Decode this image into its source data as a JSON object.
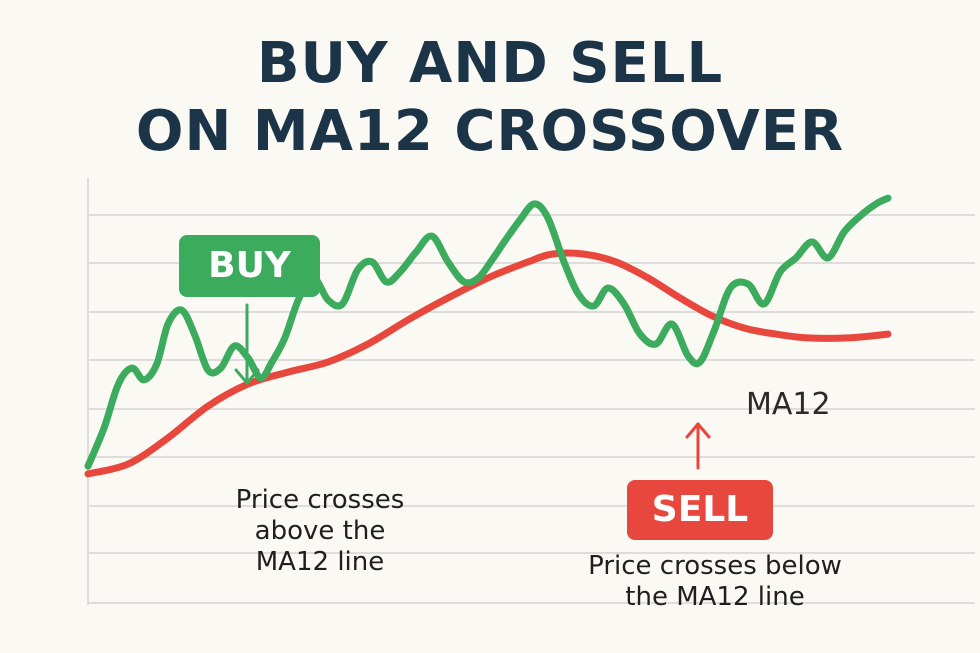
{
  "title": {
    "line1": "BUY AND SELL",
    "line2": "ON MA12 CROSSOVER"
  },
  "annotations": {
    "buy_label": "BUY",
    "buy_note": "Price crosses\nabove the\nMA12 line",
    "sell_label": "SELL",
    "sell_note": "Price crosses below\nthe MA12 line",
    "ma_label": "MA12"
  },
  "colors": {
    "price": "#3dab5e",
    "ma12": "#e8473d",
    "buy": "#3dab5e",
    "sell": "#e8473d",
    "title": "#1c3447",
    "grid": "#dddddd"
  },
  "chart_data": {
    "type": "line",
    "title": "BUY AND SELL ON MA12 CROSSOVER",
    "xlabel": "",
    "ylabel": "",
    "xlim": [
      0,
      100
    ],
    "ylim": [
      0,
      100
    ],
    "grid": true,
    "axis_ticks": false,
    "series": [
      {
        "name": "",
        "role": "price",
        "color": "#3dab5e",
        "points": [
          [
            0,
            4.8
          ],
          [
            2,
            17.9
          ],
          [
            3.8,
            33.1
          ],
          [
            5.5,
            38.6
          ],
          [
            7,
            34.5
          ],
          [
            8.6,
            40
          ],
          [
            10,
            53.8
          ],
          [
            11.7,
            58.6
          ],
          [
            13.3,
            50.3
          ],
          [
            15,
            37.9
          ],
          [
            16.6,
            38.6
          ],
          [
            18.3,
            46.2
          ],
          [
            20,
            42.1
          ],
          [
            21.6,
            35.2
          ],
          [
            23,
            40.7
          ],
          [
            24.6,
            49
          ],
          [
            26.4,
            62.8
          ],
          [
            28.2,
            69.7
          ],
          [
            30,
            62.1
          ],
          [
            31.8,
            60.7
          ],
          [
            33.7,
            72.4
          ],
          [
            35.5,
            75.2
          ],
          [
            37.3,
            68.3
          ],
          [
            39,
            71.7
          ],
          [
            41,
            78.6
          ],
          [
            43,
            84.1
          ],
          [
            45,
            75.2
          ],
          [
            47,
            68.3
          ],
          [
            48.8,
            69.7
          ],
          [
            50.5,
            75.9
          ],
          [
            52.2,
            82.8
          ],
          [
            54,
            89.7
          ],
          [
            55.8,
            95.2
          ],
          [
            57.5,
            90.3
          ],
          [
            59.5,
            75.2
          ],
          [
            61.3,
            64.1
          ],
          [
            63.2,
            60
          ],
          [
            65,
            66.2
          ],
          [
            67,
            60.7
          ],
          [
            69,
            50.3
          ],
          [
            71,
            46.9
          ],
          [
            73,
            53.8
          ],
          [
            75,
            42.8
          ],
          [
            76.5,
            40.7
          ],
          [
            78.3,
            51.7
          ],
          [
            80.3,
            66.2
          ],
          [
            82.5,
            67.6
          ],
          [
            84.5,
            60.7
          ],
          [
            86.5,
            71.7
          ],
          [
            88.5,
            76.6
          ],
          [
            90.5,
            82.1
          ],
          [
            92.5,
            76.6
          ],
          [
            94.5,
            85.5
          ],
          [
            96.5,
            91
          ],
          [
            98.5,
            95.2
          ],
          [
            100,
            97.2
          ]
        ]
      },
      {
        "name": "MA12",
        "role": "ma12",
        "color": "#e8473d",
        "points": [
          [
            0,
            2.1
          ],
          [
            5,
            5.5
          ],
          [
            10,
            14.5
          ],
          [
            15,
            25.5
          ],
          [
            20,
            33.1
          ],
          [
            25,
            37.2
          ],
          [
            30,
            40.7
          ],
          [
            35,
            46.9
          ],
          [
            40,
            55.2
          ],
          [
            45,
            62.8
          ],
          [
            50,
            69.7
          ],
          [
            55,
            75.2
          ],
          [
            58,
            77.9
          ],
          [
            62,
            77.9
          ],
          [
            66,
            75.2
          ],
          [
            70,
            69.7
          ],
          [
            74,
            62.8
          ],
          [
            78,
            56.6
          ],
          [
            82,
            52.4
          ],
          [
            86,
            50.3
          ],
          [
            90,
            49
          ],
          [
            95,
            49
          ],
          [
            100,
            50.3
          ]
        ]
      }
    ],
    "signals": [
      {
        "label": "BUY",
        "note": "Price crosses above the MA12 line",
        "x": 18.3,
        "direction": "down"
      },
      {
        "label": "SELL",
        "note": "Price crosses below the MA12 line",
        "x": 76.5,
        "direction": "up"
      }
    ]
  }
}
